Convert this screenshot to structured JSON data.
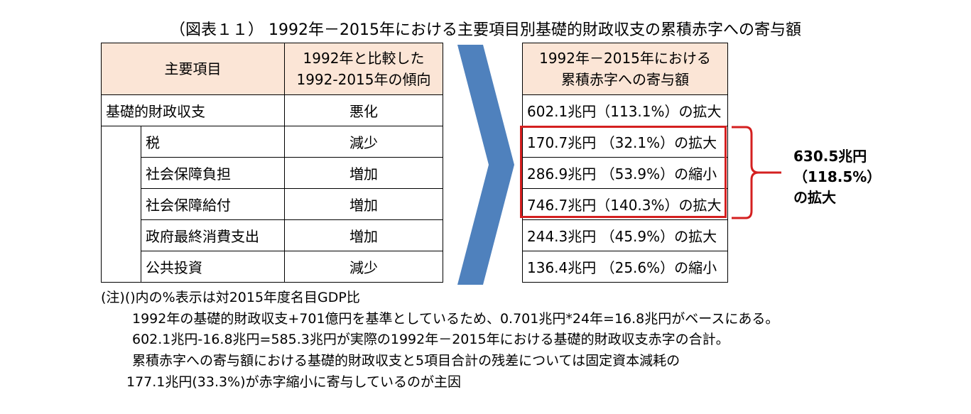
{
  "title": "（図表１１） 1992年－2015年における主要項目別基礎的財政収支の累積赤字への寄与額",
  "left_table": {
    "header_item": "主要項目",
    "header_trend": "1992年と比較した\n1992-2015年の傾向",
    "rows": [
      {
        "item": "基礎的財政収支",
        "trend": "悪化"
      },
      {
        "item": "税",
        "trend": "減少"
      },
      {
        "item": "社会保障負担",
        "trend": "増加"
      },
      {
        "item": "社会保障給付",
        "trend": "増加"
      },
      {
        "item": "政府最終消費支出",
        "trend": "増加"
      },
      {
        "item": "公共投資",
        "trend": "減少"
      }
    ]
  },
  "right_table": {
    "header": "1992年－2015年における\n累積赤字への寄与額",
    "rows": [
      "602.1兆円（113.1%）の拡大",
      "170.7兆円 （32.1%）の拡大",
      "286.9兆円 （53.9%）の縮小",
      "746.7兆円（140.3%）の拡大",
      "244.3兆円 （45.9%）の拡大",
      "136.4兆円 （25.6%）の縮小"
    ]
  },
  "callout": {
    "line1": "630.5兆円",
    "line2": "（118.5%）",
    "line3": "の拡大"
  },
  "notes": [
    "(注)()内の%表示は対2015年度名目GDP比",
    "1992年の基礎的財政収支+701億円を基準としているため、0.701兆円*24年=16.8兆円がベースにある。",
    "602.1兆円-16.8兆円=585.3兆円が実際の1992年－2015年における基礎的財政収支赤字の合計。",
    "累積赤字への寄与額における基礎的財政収支と5項目合計の残差については固定資本減耗の",
    "177.1兆円(33.3%)が赤字縮小に寄与しているのが主因"
  ],
  "colors": {
    "header_fill": "#fbe5d6",
    "arrow": "#4f81bd",
    "highlight": "#d42020"
  }
}
